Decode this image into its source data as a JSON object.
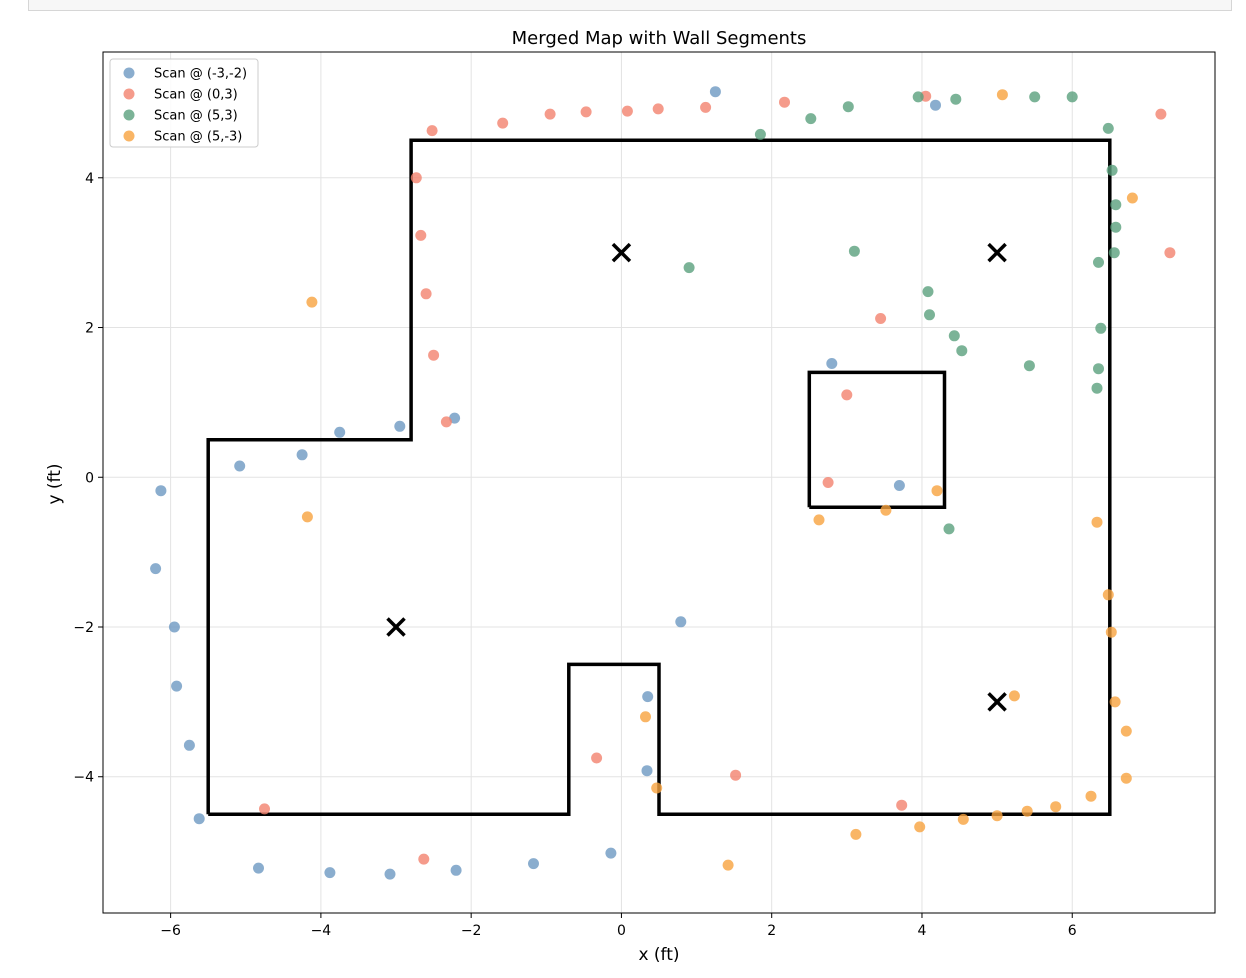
{
  "chart_data": {
    "type": "scatter",
    "title": "Merged Map with Wall Segments",
    "xlabel": "x (ft)",
    "ylabel": "y (ft)",
    "xlim": [
      -6.9,
      7.9
    ],
    "ylim": [
      -5.82,
      5.68
    ],
    "xticks": [
      -6,
      -4,
      -2,
      0,
      2,
      4,
      6
    ],
    "yticks": [
      -4,
      -2,
      0,
      2,
      4
    ],
    "xtick_labels": [
      "−6",
      "−4",
      "−2",
      "0",
      "2",
      "4",
      "6"
    ],
    "ytick_labels": [
      "−4",
      "−2",
      "0",
      "2",
      "4"
    ],
    "grid": true,
    "legend_position": "top-left",
    "series": [
      {
        "name": "Scan @ (-3,-2)",
        "color": "#6d99c2",
        "points": [
          [
            1.25,
            5.15
          ],
          [
            4.18,
            4.97
          ],
          [
            -2.22,
            0.79
          ],
          [
            -2.95,
            0.68
          ],
          [
            -3.75,
            0.6
          ],
          [
            -4.25,
            0.3
          ],
          [
            -5.08,
            0.15
          ],
          [
            -6.13,
            -0.18
          ],
          [
            -6.2,
            -1.22
          ],
          [
            -5.95,
            -2.0
          ],
          [
            -5.92,
            -2.79
          ],
          [
            -5.75,
            -3.58
          ],
          [
            -5.62,
            -4.56
          ],
          [
            -4.83,
            -5.22
          ],
          [
            -3.88,
            -5.28
          ],
          [
            -3.08,
            -5.3
          ],
          [
            -2.2,
            -5.25
          ],
          [
            -1.17,
            -5.16
          ],
          [
            -0.14,
            -5.02
          ],
          [
            0.34,
            -3.92
          ],
          [
            0.35,
            -2.93
          ],
          [
            0.79,
            -1.93
          ],
          [
            2.8,
            1.52
          ],
          [
            3.7,
            -0.11
          ]
        ]
      },
      {
        "name": "Scan @ (0,3)",
        "color": "#f2826e",
        "points": [
          [
            -2.52,
            4.63
          ],
          [
            -1.58,
            4.73
          ],
          [
            -0.95,
            4.85
          ],
          [
            -0.47,
            4.88
          ],
          [
            0.08,
            4.89
          ],
          [
            0.49,
            4.92
          ],
          [
            1.12,
            4.94
          ],
          [
            2.17,
            5.01
          ],
          [
            4.05,
            5.09
          ],
          [
            7.18,
            4.85
          ],
          [
            -2.73,
            4.0
          ],
          [
            -2.67,
            3.23
          ],
          [
            -2.6,
            2.45
          ],
          [
            -2.5,
            1.63
          ],
          [
            -2.33,
            0.74
          ],
          [
            3.45,
            2.12
          ],
          [
            3.0,
            1.1
          ],
          [
            2.75,
            -0.07
          ],
          [
            7.3,
            3.0
          ],
          [
            -0.33,
            -3.75
          ],
          [
            1.52,
            -3.98
          ],
          [
            3.73,
            -4.38
          ],
          [
            -4.75,
            -4.43
          ],
          [
            -2.63,
            -5.1
          ]
        ]
      },
      {
        "name": "Scan @ (5,3)",
        "color": "#5aa07d",
        "points": [
          [
            1.85,
            4.58
          ],
          [
            2.52,
            4.79
          ],
          [
            3.02,
            4.95
          ],
          [
            3.95,
            5.08
          ],
          [
            4.45,
            5.05
          ],
          [
            5.5,
            5.08
          ],
          [
            6.0,
            5.08
          ],
          [
            6.48,
            4.66
          ],
          [
            6.53,
            4.1
          ],
          [
            6.58,
            3.64
          ],
          [
            6.58,
            3.34
          ],
          [
            6.56,
            3.0
          ],
          [
            6.35,
            2.87
          ],
          [
            0.9,
            2.8
          ],
          [
            3.1,
            3.02
          ],
          [
            4.08,
            2.48
          ],
          [
            4.1,
            2.17
          ],
          [
            4.43,
            1.89
          ],
          [
            4.53,
            1.69
          ],
          [
            5.43,
            1.49
          ],
          [
            6.38,
            1.99
          ],
          [
            6.35,
            1.45
          ],
          [
            6.33,
            1.19
          ],
          [
            4.36,
            -0.69
          ]
        ]
      },
      {
        "name": "Scan @ (5,-3)",
        "color": "#f7a23f",
        "points": [
          [
            5.07,
            5.11
          ],
          [
            6.8,
            3.73
          ],
          [
            -4.12,
            2.34
          ],
          [
            -4.18,
            -0.53
          ],
          [
            2.63,
            -0.57
          ],
          [
            3.52,
            -0.44
          ],
          [
            4.2,
            -0.18
          ],
          [
            6.33,
            -0.6
          ],
          [
            6.48,
            -1.57
          ],
          [
            6.52,
            -2.07
          ],
          [
            6.57,
            -3.0
          ],
          [
            6.72,
            -3.39
          ],
          [
            5.23,
            -2.92
          ],
          [
            0.32,
            -3.2
          ],
          [
            0.47,
            -4.15
          ],
          [
            6.72,
            -4.02
          ],
          [
            6.25,
            -4.26
          ],
          [
            5.78,
            -4.4
          ],
          [
            5.4,
            -4.46
          ],
          [
            5.0,
            -4.52
          ],
          [
            4.55,
            -4.57
          ],
          [
            3.97,
            -4.67
          ],
          [
            3.12,
            -4.77
          ],
          [
            1.42,
            -5.18
          ]
        ]
      }
    ],
    "walls": [
      [
        [
          -5.5,
          -4.5
        ],
        [
          -5.5,
          0.5
        ],
        [
          -2.8,
          0.5
        ],
        [
          -2.8,
          4.5
        ],
        [
          6.5,
          4.5
        ],
        [
          6.5,
          -4.5
        ],
        [
          0.5,
          -4.5
        ],
        [
          0.5,
          -2.5
        ],
        [
          -0.7,
          -2.5
        ],
        [
          -0.7,
          -4.5
        ],
        [
          -5.5,
          -4.5
        ]
      ],
      [
        [
          2.5,
          -0.4
        ],
        [
          2.5,
          1.4
        ],
        [
          4.3,
          1.4
        ],
        [
          4.3,
          -0.4
        ],
        [
          2.5,
          -0.4
        ]
      ]
    ],
    "scan_positions": [
      [
        -3,
        -2
      ],
      [
        0,
        3
      ],
      [
        5,
        3
      ],
      [
        5,
        -3
      ]
    ]
  }
}
